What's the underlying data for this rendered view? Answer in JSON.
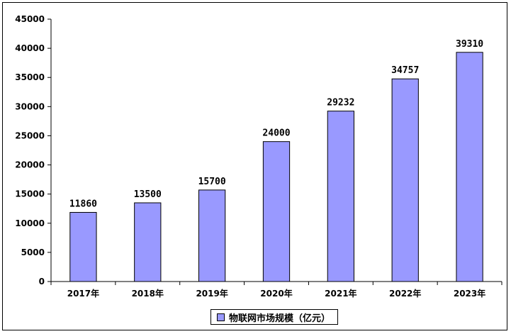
{
  "chart_data": {
    "type": "bar",
    "categories": [
      "2017年",
      "2018年",
      "2019年",
      "2020年",
      "2021年",
      "2022年",
      "2023年"
    ],
    "series": [
      {
        "name": "物联网市场规模（亿元）",
        "values": [
          11860,
          13500,
          15700,
          24000,
          29232,
          34757,
          39310
        ]
      }
    ],
    "data_labels": [
      "11860",
      "13500",
      "15700",
      "24000",
      "29232",
      "34757",
      "39310"
    ],
    "y_ticks": [
      "0",
      "5000",
      "10000",
      "15000",
      "20000",
      "25000",
      "30000",
      "35000",
      "40000",
      "45000"
    ],
    "ylim": [
      0,
      45000
    ],
    "grid": false,
    "legend_position": "bottom",
    "colors": {
      "bar_fill": "#9999ff",
      "bar_stroke": "#000000",
      "axis": "#000000"
    }
  }
}
